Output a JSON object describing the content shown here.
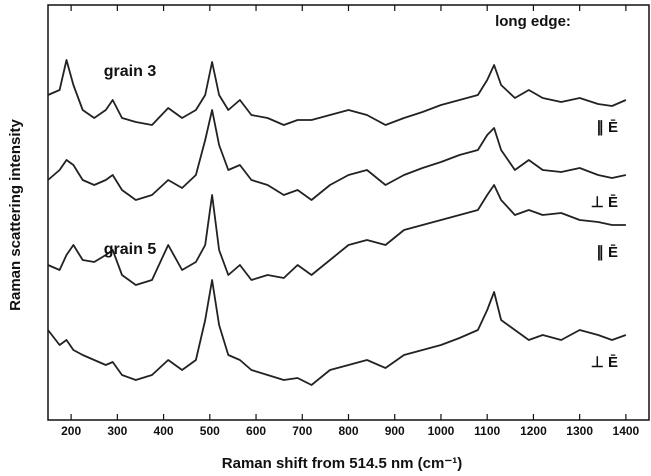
{
  "chart_data": {
    "type": "line",
    "title_annotation": "long edge:",
    "annotations": [
      "grain 3",
      "grain 5"
    ],
    "xlabel": "Raman shift from 514.5 nm  (cm⁻¹)",
    "ylabel": "Raman scattering intensity",
    "x": [
      150,
      175,
      190,
      205,
      225,
      250,
      275,
      290,
      310,
      340,
      375,
      410,
      440,
      470,
      490,
      505,
      520,
      540,
      565,
      590,
      625,
      660,
      690,
      720,
      760,
      800,
      840,
      880,
      920,
      960,
      1000,
      1040,
      1080,
      1100,
      1115,
      1130,
      1160,
      1190,
      1220,
      1260,
      1300,
      1340,
      1370,
      1400
    ],
    "xlim": [
      150,
      1450
    ],
    "xticks": [
      200,
      300,
      400,
      500,
      600,
      700,
      800,
      900,
      1000,
      1100,
      1200,
      1300,
      1400
    ],
    "ylim": [
      32,
      447
    ],
    "series": [
      {
        "name": "∥ Ē",
        "color": "#222222",
        "values": [
          357,
          362,
          392,
          367,
          342,
          334,
          342,
          352,
          334,
          330,
          327,
          344,
          334,
          342,
          357,
          390,
          357,
          342,
          352,
          337,
          334,
          327,
          332,
          332,
          337,
          342,
          337,
          327,
          334,
          340,
          347,
          352,
          357,
          372,
          387,
          367,
          354,
          362,
          354,
          350,
          354,
          348,
          346,
          352
        ]
      },
      {
        "name": "⊥ Ē",
        "color": "#222222",
        "values": [
          272,
          282,
          292,
          287,
          272,
          267,
          272,
          277,
          262,
          252,
          257,
          272,
          264,
          277,
          312,
          342,
          307,
          282,
          287,
          272,
          267,
          257,
          262,
          252,
          267,
          277,
          282,
          267,
          277,
          284,
          290,
          297,
          302,
          317,
          324,
          302,
          282,
          292,
          282,
          280,
          284,
          277,
          274,
          277
        ]
      },
      {
        "name": "∥ Ē",
        "color": "#222222",
        "values": [
          187,
          182,
          197,
          207,
          192,
          190,
          197,
          202,
          177,
          167,
          172,
          207,
          182,
          190,
          207,
          257,
          202,
          177,
          187,
          172,
          177,
          174,
          187,
          177,
          192,
          207,
          212,
          207,
          222,
          227,
          232,
          237,
          242,
          257,
          267,
          252,
          237,
          242,
          237,
          239,
          232,
          230,
          227,
          227
        ]
      },
      {
        "name": "⊥ Ē",
        "color": "#222222",
        "values": [
          122,
          107,
          112,
          102,
          97,
          92,
          87,
          90,
          77,
          72,
          77,
          92,
          82,
          92,
          132,
          172,
          127,
          97,
          92,
          82,
          77,
          72,
          74,
          67,
          82,
          87,
          92,
          84,
          97,
          102,
          107,
          114,
          122,
          142,
          160,
          132,
          122,
          112,
          117,
          112,
          122,
          117,
          112,
          117
        ]
      }
    ]
  }
}
